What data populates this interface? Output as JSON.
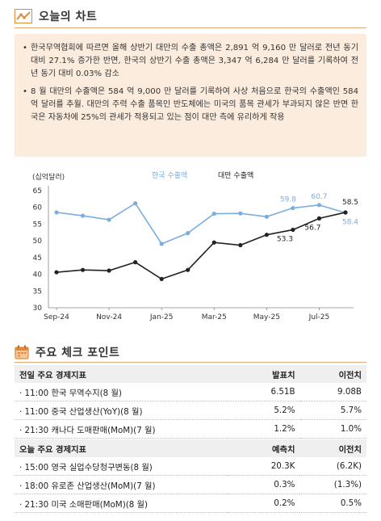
{
  "section1": {
    "title": "오늘의 차트",
    "icon": "line-chart-icon"
  },
  "summary": [
    "한국무역협회에 따르면 올해 상반기 대만의 수출 총액은 2,891 억 9,160 만 달러로 전년 동기 대비 27.1% 증가한 반면, 한국의 상반기 수출 총액은 3,347 억 6,284 만 달러를 기록하여 전년 동기 대비 0.03% 감소",
    "8 월 대만의 수출액은 584 억 9,000 만 달러를 기록하여 사상 처음으로 한국의 수출액인 584 억 달러를 추월. 대만의 주력 수출 품목인 반도체에는 미국의 품목 관세가 부과되지 않은 반면 한국은 자동차에 25%의 관세가 적용되고 있는 점이 대만 측에 유리하게 작용"
  ],
  "chart_data": {
    "type": "line",
    "ylabel": "(십억달러)",
    "ylim": [
      30,
      65
    ],
    "yticks": [
      30,
      35,
      40,
      45,
      50,
      55,
      60,
      65
    ],
    "x": [
      "Sep-24",
      "Oct-24",
      "Nov-24",
      "Dec-24",
      "Jan-25",
      "Feb-25",
      "Mar-25",
      "Apr-25",
      "May-25",
      "Jun-25",
      "Jul-25",
      "Aug-25"
    ],
    "xtick_labels": [
      "Sep-24",
      "Nov-24",
      "Jan-25",
      "Mar-25",
      "May-25",
      "Jul-25"
    ],
    "legend_position": "top-center",
    "grid": false,
    "series": [
      {
        "name": "한국 수출액",
        "color": "#7aaee0",
        "values": [
          58.5,
          57.5,
          56.3,
          61.2,
          49.1,
          52.3,
          58.1,
          58.2,
          57.2,
          59.8,
          60.7,
          58.4
        ]
      },
      {
        "name": "대만 수출액",
        "color": "#222222",
        "values": [
          40.6,
          41.3,
          41.1,
          43.6,
          38.6,
          41.3,
          49.5,
          48.7,
          51.8,
          53.3,
          56.7,
          58.5
        ]
      }
    ],
    "annotations": [
      {
        "series": 0,
        "index": 9,
        "text": "59.8"
      },
      {
        "series": 0,
        "index": 10,
        "text": "60.7"
      },
      {
        "series": 0,
        "index": 11,
        "text": "58.4"
      },
      {
        "series": 1,
        "index": 9,
        "text": "53.3"
      },
      {
        "series": 1,
        "index": 10,
        "text": "56.7"
      },
      {
        "series": 1,
        "index": 11,
        "text": "58.5"
      }
    ]
  },
  "section2": {
    "title": "주요 체크 포인트",
    "icon": "calendar-icon"
  },
  "prev_table": {
    "headers": [
      "전일 주요 경제지표",
      "발표치",
      "이전치"
    ],
    "rows": [
      [
        "· 11:00 한국 무역수지(8 월)",
        "6.51B",
        "9.08B"
      ],
      [
        "· 11:00 중국 산업생산(YoY)(8 월)",
        "5.2%",
        "5.7%"
      ],
      [
        "· 21:30 캐나다 도매판매(MoM)(7 월)",
        "1.2%",
        "1.0%"
      ]
    ]
  },
  "today_table": {
    "headers": [
      "오늘 주요 경제지표",
      "예측치",
      "이전치"
    ],
    "rows": [
      [
        "· 15:00 영국 실업수당청구변동(8 월)",
        "20.3K",
        "(6.2K)"
      ],
      [
        "· 18:00 유로존 산업생산(MoM)(7 월)",
        "0.3%",
        "(1.3%)"
      ],
      [
        "· 21:30 미국 소매판매(MoM)(8 월)",
        "0.2%",
        "0.5%"
      ]
    ]
  }
}
